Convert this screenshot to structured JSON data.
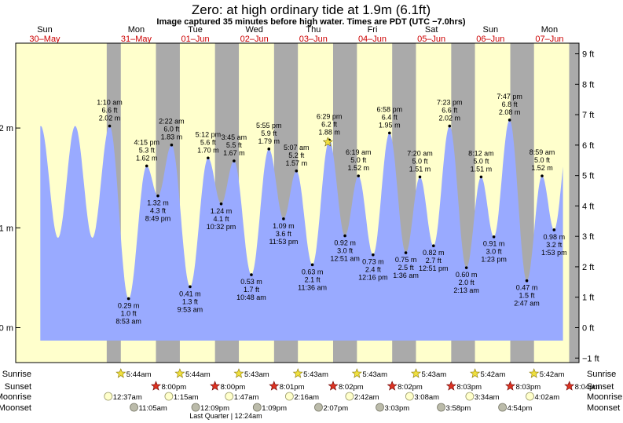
{
  "title": "Zero: at high  ordinary tide at 1.9m (6.1ft)",
  "subtitle": "Image captured 35 minutes before high water. Times are PDT (UTC −7.0hrs)",
  "days": [
    {
      "name": "Sun",
      "date": "30–May"
    },
    {
      "name": "Mon",
      "date": "31–May"
    },
    {
      "name": "Tue",
      "date": "01–Jun"
    },
    {
      "name": "Wed",
      "date": "02–Jun"
    },
    {
      "name": "Thu",
      "date": "03–Jun"
    },
    {
      "name": "Fri",
      "date": "04–Jun"
    },
    {
      "name": "Sat",
      "date": "05–Jun"
    },
    {
      "name": "Sun",
      "date": "06–Jun"
    },
    {
      "name": "Mon",
      "date": "07–Jun"
    }
  ],
  "chart_data": {
    "type": "area",
    "ylabel_left_unit": "m",
    "ylabel_right_unit": "ft",
    "left_ticks": [
      "0 m",
      "1 m",
      "2 m"
    ],
    "right_ticks": [
      "−1 ft",
      "0 ft",
      "1 ft",
      "2 ft",
      "3 ft",
      "4 ft",
      "5 ft",
      "6 ft",
      "7 ft",
      "8 ft",
      "9 ft"
    ],
    "ylim_m": [
      -0.35,
      2.85
    ],
    "start_hour_offset": 13,
    "extremes": [
      {
        "t": 25.17,
        "m": 2.02,
        "time": "1:10 am",
        "ft": "6.6 ft",
        "mlabel": "2.02 m",
        "type": "high"
      },
      {
        "t": 32.88,
        "m": 0.29,
        "time": "8:53 am",
        "ft": "1.0 ft",
        "mlabel": "0.29 m",
        "type": "low"
      },
      {
        "t": 40.25,
        "m": 1.62,
        "time": "4:15 pm",
        "ft": "5.3 ft",
        "mlabel": "1.62 m",
        "type": "high"
      },
      {
        "t": 44.82,
        "m": 1.32,
        "time": "8:49 pm",
        "ft": "4.3 ft",
        "mlabel": "1.32 m",
        "type": "low"
      },
      {
        "t": 50.37,
        "m": 1.83,
        "time": "2:22 am",
        "ft": "6.0 ft",
        "mlabel": "1.83 m",
        "type": "high"
      },
      {
        "t": 57.88,
        "m": 0.41,
        "time": "9:53 am",
        "ft": "1.3 ft",
        "mlabel": "0.41 m",
        "type": "low"
      },
      {
        "t": 65.2,
        "m": 1.7,
        "time": "5:12 pm",
        "ft": "5.6 ft",
        "mlabel": "1.70 m",
        "type": "high"
      },
      {
        "t": 70.53,
        "m": 1.24,
        "time": "10:32 pm",
        "ft": "4.1 ft",
        "mlabel": "1.24 m",
        "type": "low"
      },
      {
        "t": 75.75,
        "m": 1.67,
        "time": "3:45 am",
        "ft": "5.5 ft",
        "mlabel": "1.67 m",
        "type": "high"
      },
      {
        "t": 82.8,
        "m": 0.53,
        "time": "10:48 am",
        "ft": "1.7 ft",
        "mlabel": "0.53 m",
        "type": "low"
      },
      {
        "t": 89.92,
        "m": 1.79,
        "time": "5:55 pm",
        "ft": "5.9 ft",
        "mlabel": "1.79 m",
        "type": "high"
      },
      {
        "t": 95.88,
        "m": 1.09,
        "time": "11:53 pm",
        "ft": "3.6 ft",
        "mlabel": "1.09 m",
        "type": "low"
      },
      {
        "t": 101.12,
        "m": 1.57,
        "time": "5:07 am",
        "ft": "5.2 ft",
        "mlabel": "1.57 m",
        "type": "high"
      },
      {
        "t": 107.6,
        "m": 0.63,
        "time": "11:36 am",
        "ft": "2.1 ft",
        "mlabel": "0.63 m",
        "type": "low"
      },
      {
        "t": 114.48,
        "m": 1.88,
        "time": "6:29 pm",
        "ft": "6.2 ft",
        "mlabel": "1.88 m",
        "type": "high"
      },
      {
        "t": 120.85,
        "m": 0.92,
        "time": "12:51 am",
        "ft": "3.0 ft",
        "mlabel": "0.92 m",
        "type": "low"
      },
      {
        "t": 126.32,
        "m": 1.52,
        "time": "6:19 am",
        "ft": "5.0 ft",
        "mlabel": "1.52 m",
        "type": "high"
      },
      {
        "t": 132.27,
        "m": 0.73,
        "time": "12:16 pm",
        "ft": "2.4 ft",
        "mlabel": "0.73 m",
        "type": "low"
      },
      {
        "t": 138.97,
        "m": 1.95,
        "time": "6:58 pm",
        "ft": "6.4 ft",
        "mlabel": "1.95 m",
        "type": "high"
      },
      {
        "t": 145.6,
        "m": 0.75,
        "time": "1:36 am",
        "ft": "2.5 ft",
        "mlabel": "0.75 m",
        "type": "low"
      },
      {
        "t": 151.33,
        "m": 1.51,
        "time": "7:20 am",
        "ft": "5.0 ft",
        "mlabel": "1.51 m",
        "type": "high"
      },
      {
        "t": 156.85,
        "m": 0.82,
        "time": "12:51 pm",
        "ft": "2.7 ft",
        "mlabel": "0.82 m",
        "type": "low"
      },
      {
        "t": 163.38,
        "m": 2.02,
        "time": "7:23 pm",
        "ft": "6.6 ft",
        "mlabel": "2.02 m",
        "type": "high"
      },
      {
        "t": 170.22,
        "m": 0.6,
        "time": "2:13 am",
        "ft": "2.0 ft",
        "mlabel": "0.60 m",
        "type": "low"
      },
      {
        "t": 176.2,
        "m": 1.51,
        "time": "8:12 am",
        "ft": "5.0 ft",
        "mlabel": "1.51 m",
        "type": "high"
      },
      {
        "t": 181.38,
        "m": 0.91,
        "time": "1:23 pm",
        "ft": "3.0 ft",
        "mlabel": "0.91 m",
        "type": "low"
      },
      {
        "t": 187.78,
        "m": 2.08,
        "time": "7:47 pm",
        "ft": "6.8 ft",
        "mlabel": "2.08 m",
        "type": "high"
      },
      {
        "t": 194.78,
        "m": 0.47,
        "time": "2:47 am",
        "ft": "1.5 ft",
        "mlabel": "0.47 m",
        "type": "low"
      },
      {
        "t": 200.98,
        "m": 1.52,
        "time": "8:59 am",
        "ft": "5.0 ft",
        "mlabel": "1.52 m",
        "type": "high"
      },
      {
        "t": 205.88,
        "m": 0.98,
        "time": "1:53 pm",
        "ft": "3.2 ft",
        "mlabel": "0.98 m",
        "type": "low"
      }
    ],
    "captured_hour": 113.9,
    "night_bands": [
      [
        24.0,
        29.73
      ],
      [
        44.0,
        53.73
      ],
      [
        68.02,
        77.72
      ],
      [
        92.03,
        101.72
      ],
      [
        116.03,
        125.72
      ],
      [
        140.05,
        149.72
      ],
      [
        164.05,
        173.7
      ],
      [
        188.07,
        197.7
      ],
      [
        212.0,
        216.0
      ]
    ]
  },
  "rows": {
    "labels": [
      "Sunrise",
      "Sunset",
      "Moonrise",
      "Moonset"
    ],
    "sunrise": [
      "5:44am",
      "5:44am",
      "5:43am",
      "5:43am",
      "5:43am",
      "5:43am",
      "5:42am",
      "5:42am"
    ],
    "sunset": [
      "8:00pm",
      "8:00pm",
      "8:01pm",
      "8:02pm",
      "8:02pm",
      "8:03pm",
      "8:03pm",
      "8:04pm"
    ],
    "moonrise": [
      "12:37am",
      "1:15am",
      "1:47am",
      "2:16am",
      "2:42am",
      "3:08am",
      "3:34am",
      "4:02am"
    ],
    "moonset": [
      "11:05am",
      "12:09pm",
      "1:09pm",
      "2:07pm",
      "3:03pm",
      "3:58pm",
      "4:54pm"
    ],
    "phase": "Last Quarter | 12:24am"
  },
  "colors": {
    "day": "#ffffcc",
    "night": "#aaaaaa",
    "water": "#99aaff",
    "sun": "#f0e040",
    "sunset": "#dd3322",
    "moonrise": "#ffffcc",
    "moonset": "#bbbbaa"
  }
}
